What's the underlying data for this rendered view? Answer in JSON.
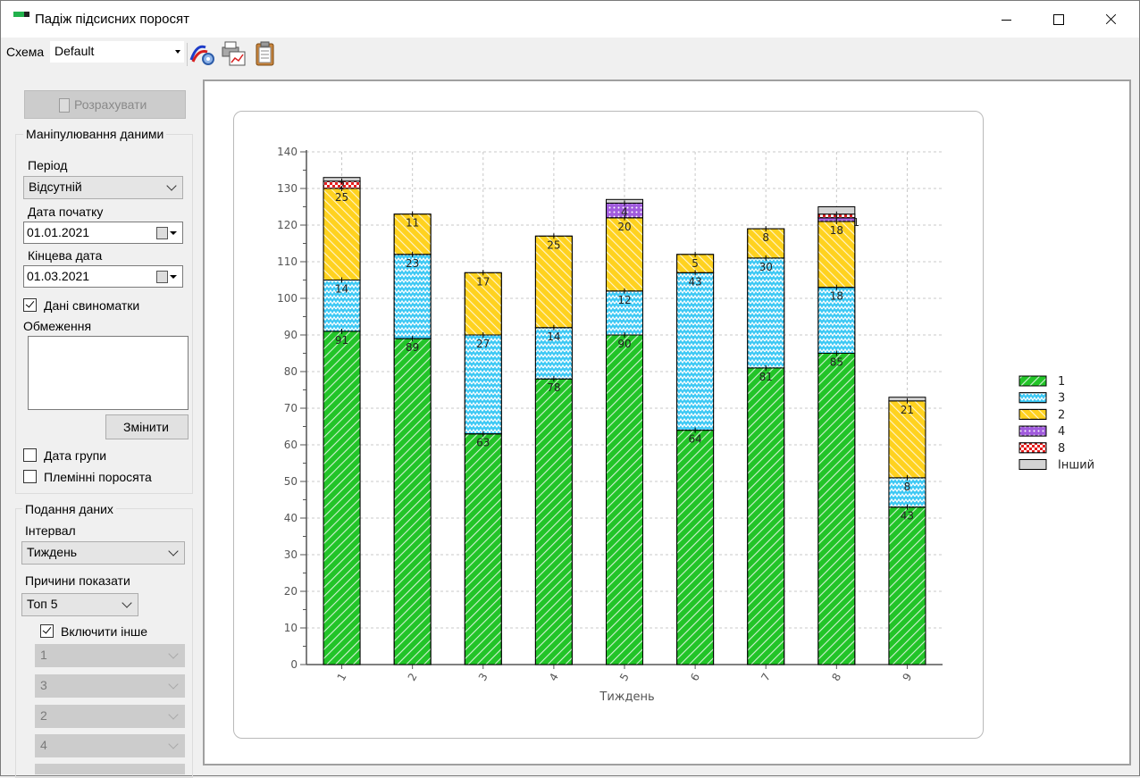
{
  "window": {
    "title": "Падіж підсисних поросят"
  },
  "toolbar": {
    "scheme_label": "Схема",
    "scheme_value": "Default",
    "icons": [
      "chart-settings-icon",
      "print-preview-icon",
      "clipboard-icon"
    ]
  },
  "left": {
    "calc_label": "Розрахувати",
    "data_group_title": "Маніпулювання даними",
    "period_label": "Період",
    "period_value": "Відсутній",
    "start_label": "Дата початку",
    "start_value": "01.01.2021",
    "end_label": "Кінцева дата",
    "end_value": "01.03.2021",
    "sow_data_label": "Дані свиноматки",
    "sow_data_checked": true,
    "limits_label": "Обмеження",
    "change_label": "Змінити",
    "group_date_label": "Дата групи",
    "group_date_checked": false,
    "breeding_label": "Племінні поросята",
    "breeding_checked": false,
    "view_group_title": "Подання даних",
    "interval_label": "Інтервал",
    "interval_value": "Тиждень",
    "reasons_label": "Причини показати",
    "reasons_value": "Топ 5",
    "include_other_label": "Включити інше",
    "include_other_checked": true,
    "reason_selects": [
      "1",
      "3",
      "2",
      "4"
    ]
  },
  "chart_data": {
    "type": "bar",
    "stacked": true,
    "xlabel": "Тиждень",
    "ylabel": "",
    "ylim": [
      0,
      140
    ],
    "ytick_step": 10,
    "categories": [
      "1",
      "2",
      "3",
      "4",
      "5",
      "6",
      "7",
      "8",
      "9"
    ],
    "series": [
      {
        "name": "1",
        "color": "#22c428",
        "pattern": "diagonal-hatch",
        "values": [
          91,
          89,
          63,
          78,
          90,
          64,
          81,
          85,
          43
        ]
      },
      {
        "name": "3",
        "color": "#3cc8f4",
        "pattern": "zigzag",
        "values": [
          14,
          23,
          27,
          14,
          12,
          43,
          30,
          18,
          8
        ]
      },
      {
        "name": "2",
        "color": "#ffd21f",
        "pattern": "diagonal-hatch",
        "values": [
          25,
          11,
          17,
          25,
          20,
          5,
          8,
          18,
          21
        ]
      },
      {
        "name": "4",
        "color": "#a05bdc",
        "pattern": "dots",
        "values": [
          0,
          0,
          0,
          0,
          4,
          0,
          0,
          1,
          0
        ]
      },
      {
        "name": "8",
        "color": "#e61e1e",
        "pattern": "checker",
        "values": [
          2,
          0,
          0,
          0,
          0,
          0,
          0,
          1,
          0
        ]
      },
      {
        "name": "Інший",
        "color": "#d3d3d3",
        "pattern": "solid",
        "values": [
          1,
          0,
          0,
          0,
          1,
          0,
          0,
          2,
          1
        ]
      }
    ],
    "legend_position": "right",
    "grid": true
  }
}
